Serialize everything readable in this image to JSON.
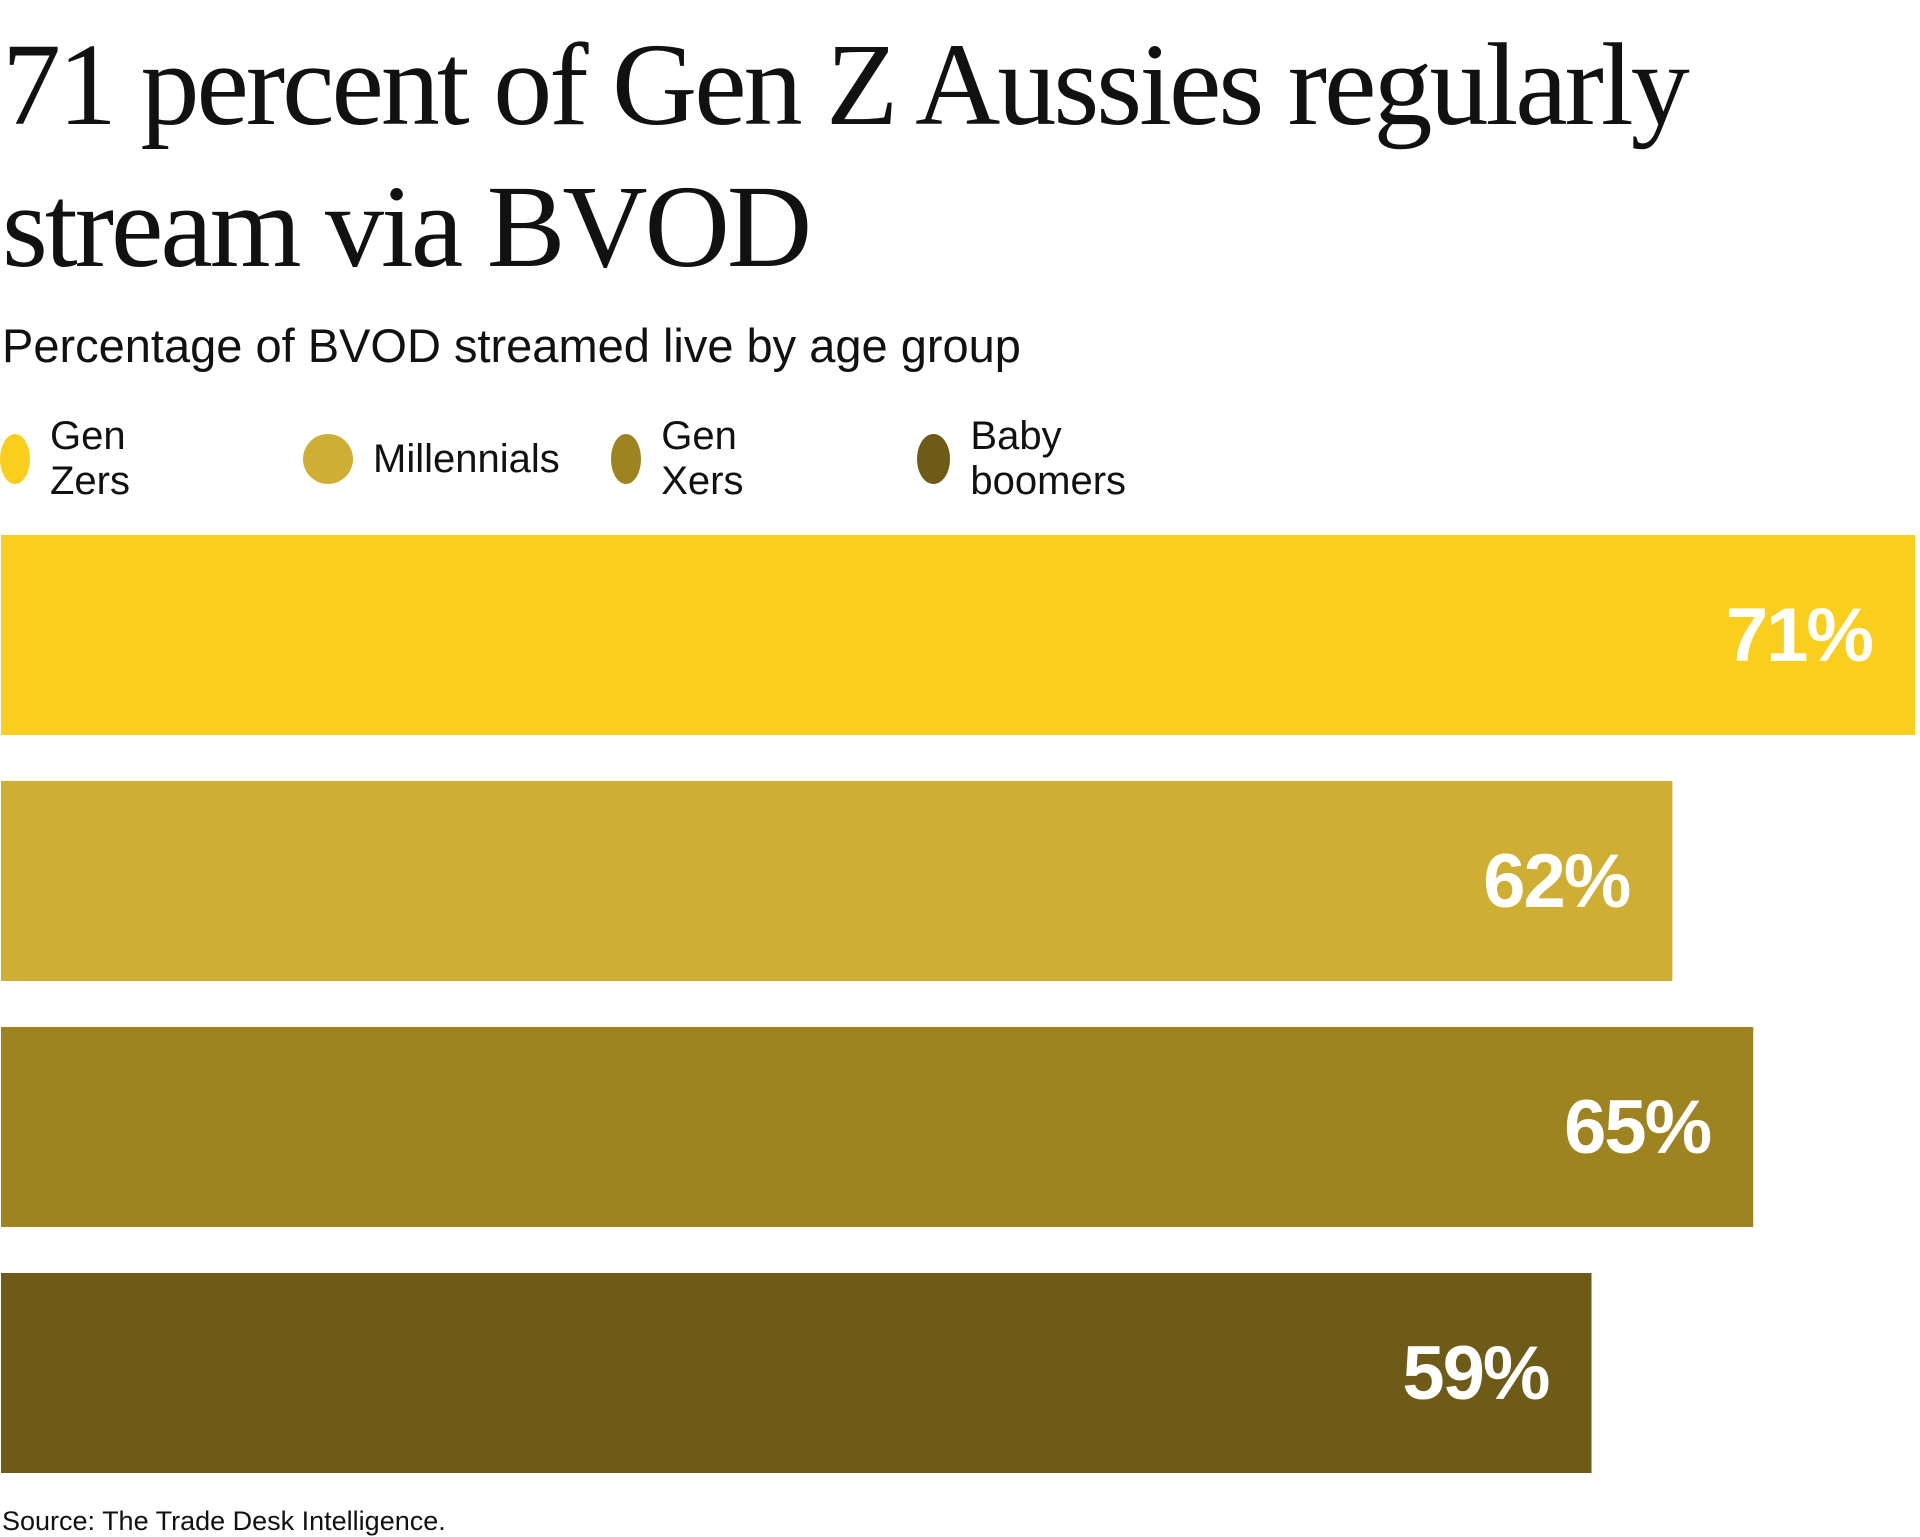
{
  "chart_data": {
    "type": "bar",
    "orientation": "horizontal",
    "title": "71 percent of Gen Z Aussies regularly stream via BVOD",
    "subtitle": "Percentage of BVOD streamed live by age group",
    "categories": [
      "Gen Zers",
      "Millennials",
      "Gen Xers",
      "Baby boomers"
    ],
    "values": [
      71,
      62,
      65,
      59
    ],
    "labels": [
      "71%",
      "62%",
      "65%",
      "59%"
    ],
    "colors": [
      "#F9CE1D",
      "#CFAE34",
      "#9E8420",
      "#6E5B18"
    ],
    "unit": "%",
    "legend_position": "top-left",
    "grid": false,
    "source": "Source: The Trade Desk Intelligence."
  }
}
